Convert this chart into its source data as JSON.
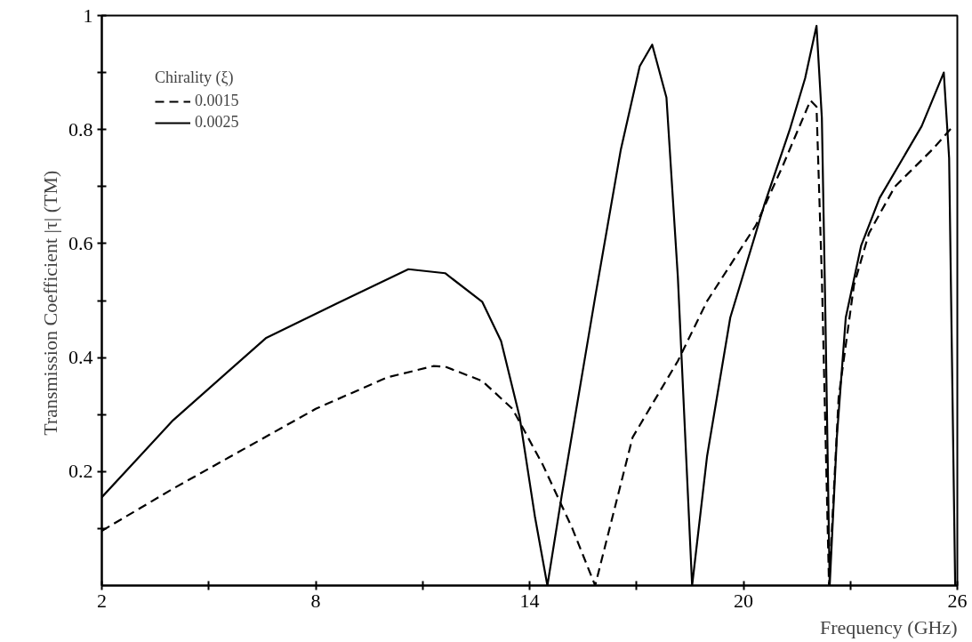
{
  "chart_data": {
    "type": "line",
    "xlabel": "Frequency (GHz)",
    "ylabel": "Transmission Coefficient  |τ| (TM)",
    "legend_title": "Chirality (ξ)",
    "xlim": [
      2,
      26
    ],
    "ylim": [
      0,
      1
    ],
    "xticks": [
      2,
      {
        "value": 5,
        "label": null
      },
      8,
      {
        "value": 11,
        "label": null
      },
      14,
      {
        "value": 17,
        "label": null
      },
      20,
      {
        "value": 23,
        "label": null
      },
      26
    ],
    "yticks": [
      {
        "value": 0.1,
        "label": null
      },
      0.2,
      {
        "value": 0.3,
        "label": null
      },
      0.4,
      {
        "value": 0.5,
        "label": null
      },
      0.6,
      {
        "value": 0.7,
        "label": null
      },
      0.8,
      {
        "value": 0.9,
        "label": null
      },
      1
    ],
    "grid": false,
    "legend": "top left",
    "marker": "none",
    "series": [
      {
        "name": "0.0015",
        "color": "#000000",
        "line_style": "dashed",
        "x": [
          2,
          4,
          6,
          8,
          10,
          11.3,
          11.63,
          12.67,
          13.52,
          14.37,
          15.2,
          15.84,
          16.89,
          18.16,
          18.98,
          20.35,
          21.1,
          21.88,
          22.05,
          22.2,
          22.4,
          22.67,
          23.1,
          23.52,
          24.25,
          25.3,
          25.84
        ],
        "values": [
          0.096,
          0.17,
          0.24,
          0.31,
          0.365,
          0.385,
          0.384,
          0.359,
          0.31,
          0.212,
          0.1,
          0,
          0.26,
          0.394,
          0.499,
          0.632,
          0.736,
          0.851,
          0.84,
          0.54,
          0,
          0.33,
          0.527,
          0.618,
          0.7,
          0.765,
          0.803
        ]
      },
      {
        "name": "0.0025",
        "color": "#000000",
        "line_style": "solid",
        "x": [
          2,
          4,
          6.6,
          8.66,
          10.6,
          11.63,
          12.67,
          13.2,
          13.72,
          14.15,
          14.5,
          14.9,
          15.84,
          16.56,
          17.09,
          17.44,
          17.84,
          18.16,
          18.56,
          18.98,
          19.63,
          20.58,
          21.3,
          21.73,
          22.05,
          22.2,
          22.3,
          22.42,
          22.62,
          22.87,
          23.3,
          23.82,
          25.0,
          25.62,
          25.77,
          25.94
        ],
        "values": [
          0.155,
          0.29,
          0.434,
          0.497,
          0.555,
          0.548,
          0.498,
          0.429,
          0.296,
          0.121,
          0,
          0.157,
          0.506,
          0.765,
          0.911,
          0.949,
          0.856,
          0.541,
          0,
          0.227,
          0.47,
          0.667,
          0.8,
          0.89,
          0.982,
          0.82,
          0.47,
          0,
          0.26,
          0.47,
          0.596,
          0.68,
          0.806,
          0.9,
          0.75,
          0
        ]
      }
    ]
  }
}
